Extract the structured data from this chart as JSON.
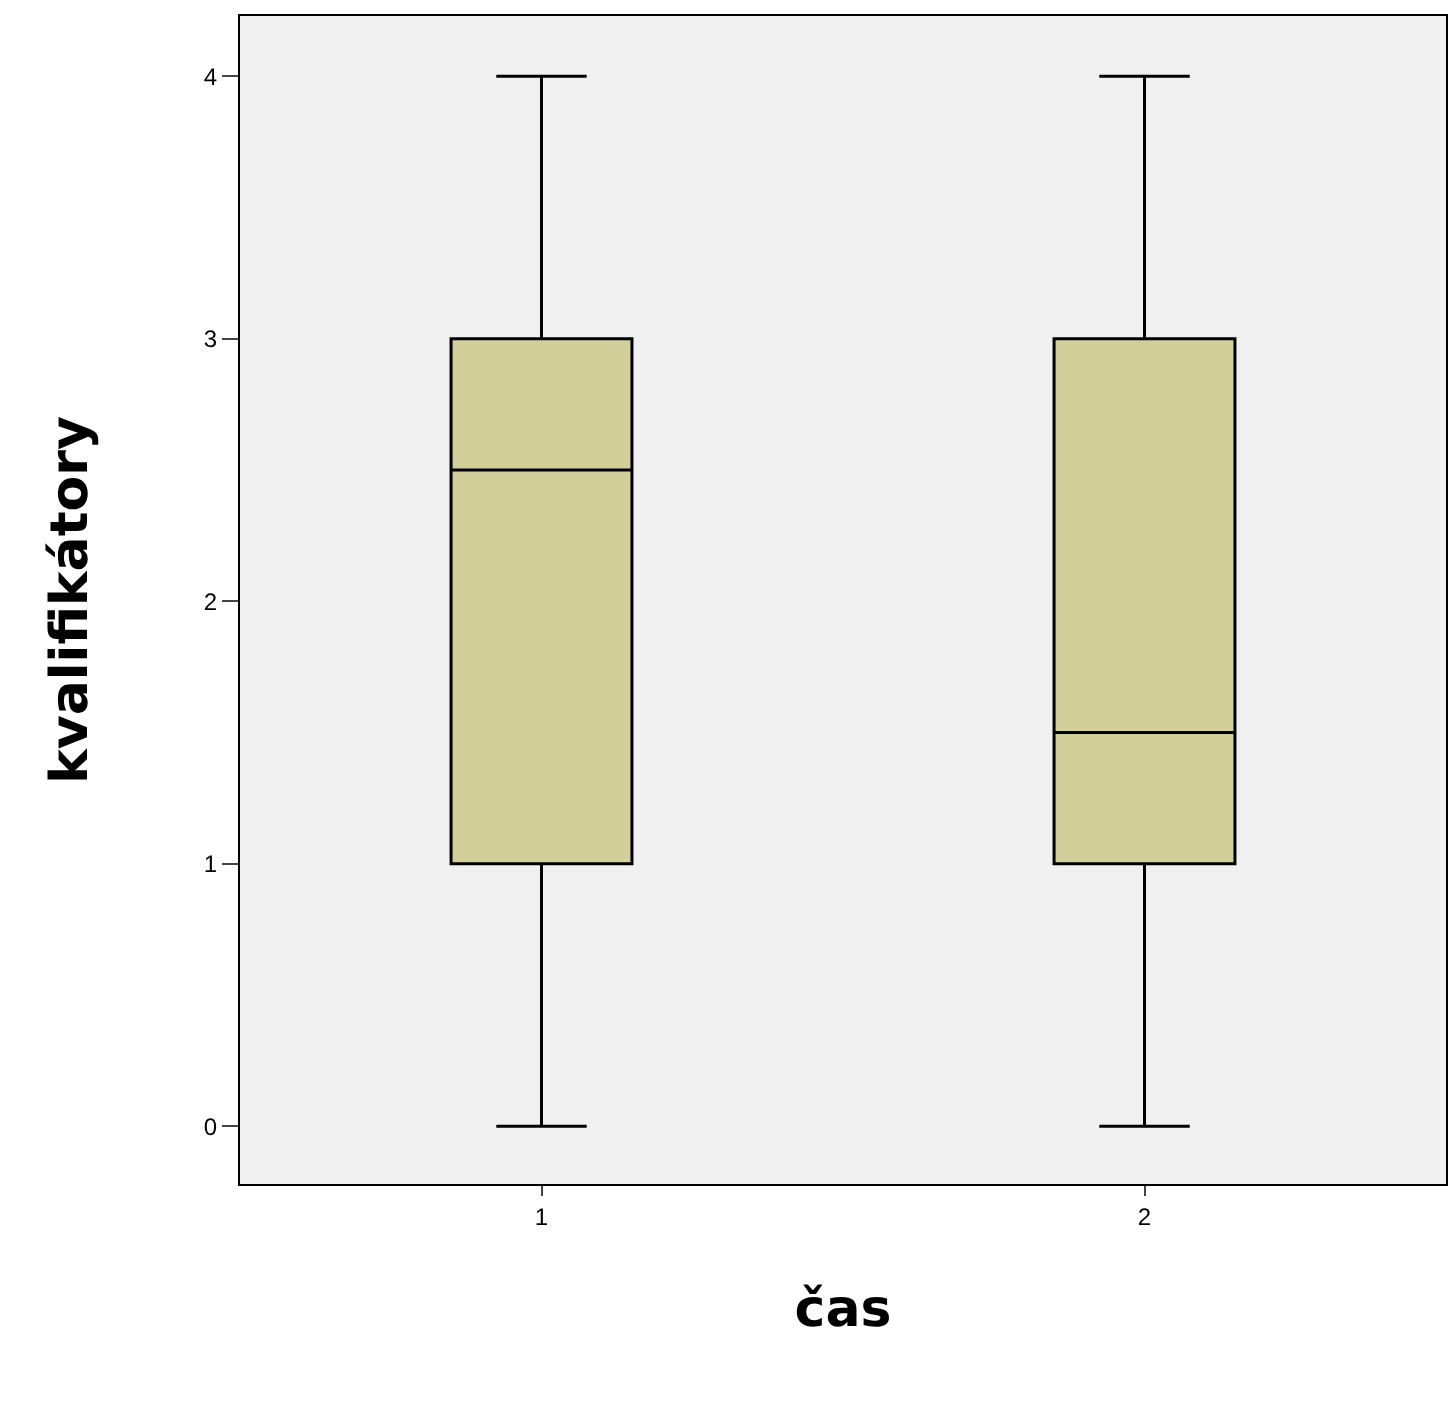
{
  "chart_data": {
    "type": "box",
    "xlabel": "čas",
    "ylabel": "kvalifikátory",
    "categories": [
      "1",
      "2"
    ],
    "boxes": [
      {
        "low": 0,
        "q1": 1,
        "median": 2.5,
        "q3": 3,
        "high": 4
      },
      {
        "low": 0,
        "q1": 1,
        "median": 1.5,
        "q3": 3,
        "high": 4
      }
    ],
    "color": "#d3cf9b",
    "ylim": [
      -0.22,
      4.23
    ],
    "yticks": [
      0,
      1,
      2,
      3,
      4
    ],
    "grid": false,
    "legend": false
  }
}
